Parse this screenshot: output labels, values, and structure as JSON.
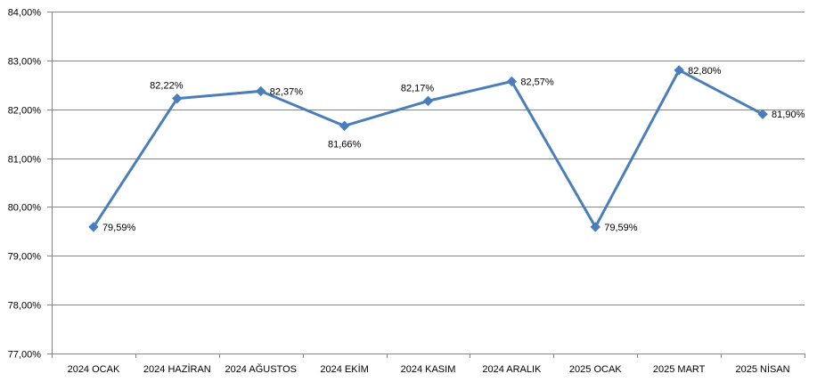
{
  "chart_data": {
    "type": "line",
    "title": "",
    "xlabel": "",
    "ylabel": "",
    "categories": [
      "2024 OCAK",
      "2024 HAZİRAN",
      "2024 AĞUSTOS",
      "2024 EKİM",
      "2024 KASIM",
      "2024 ARALIK",
      "2025 OCAK",
      "2025 MART",
      "2025 NİSAN"
    ],
    "series": [
      {
        "values": [
          79.59,
          82.22,
          82.37,
          81.66,
          82.17,
          82.57,
          79.59,
          82.8,
          81.9
        ],
        "labels": [
          "79,59%",
          "82,22%",
          "82,37%",
          "81,66%",
          "82,17%",
          "82,57%",
          "79,59%",
          "82,80%",
          "81,90%"
        ],
        "color": "#4a7ebb"
      }
    ],
    "ylim": [
      77,
      84
    ],
    "yticks": [
      77,
      78,
      79,
      80,
      81,
      82,
      83,
      84
    ],
    "ytick_labels": [
      "77,00%",
      "78,00%",
      "79,00%",
      "80,00%",
      "81,00%",
      "82,00%",
      "83,00%",
      "84,00%"
    ],
    "grid": true,
    "legend": "none",
    "gridline_color": "#868686",
    "axis_color": "#868686"
  }
}
